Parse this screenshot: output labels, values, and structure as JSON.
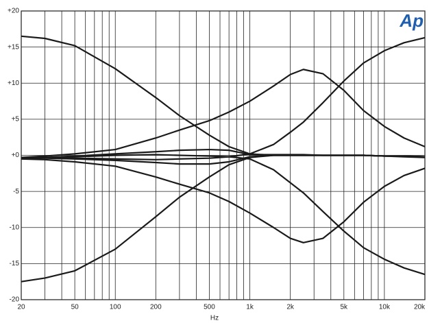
{
  "chart_data": {
    "type": "line",
    "logo": "Ap",
    "xlabel": "Hz",
    "xscale": "log",
    "grid": true,
    "xlim": [
      20,
      20000
    ],
    "ylim": [
      -20,
      20
    ],
    "xticks": [
      20,
      50,
      100,
      200,
      500,
      {
        "value": 1000,
        "label": "1k"
      },
      {
        "value": 2000,
        "label": "2k"
      },
      {
        "value": 5000,
        "label": "5k"
      },
      {
        "value": 10000,
        "label": "10k"
      },
      {
        "value": 20000,
        "label": "20k"
      }
    ],
    "xgrid": [
      30,
      40,
      60,
      70,
      80,
      90,
      300,
      400,
      600,
      700,
      800,
      900,
      3000,
      4000,
      6000,
      7000,
      8000,
      9000
    ],
    "yticks": [
      {
        "value": 20,
        "label": "+20"
      },
      {
        "value": 15,
        "label": "+15"
      },
      {
        "value": 10,
        "label": "+10"
      },
      {
        "value": 5,
        "label": "+5"
      },
      {
        "value": 0,
        "label": "+0"
      },
      -5,
      -10,
      -15,
      -20
    ],
    "x": [
      20,
      30,
      50,
      100,
      200,
      300,
      500,
      700,
      1000,
      1500,
      2000,
      2500,
      3500,
      5000,
      7000,
      10000,
      14000,
      20000
    ],
    "series": [
      {
        "color": "#1a1a1a",
        "values": [
          16.5,
          16.2,
          15.2,
          12,
          8,
          5.5,
          2.8,
          1.2,
          0.2,
          0,
          0,
          0,
          0,
          0,
          0,
          -0.1,
          -0.1,
          -0.2
        ]
      },
      {
        "color": "#1a1a1a",
        "values": [
          -17.5,
          -17,
          -16,
          -13,
          -8.5,
          -5.8,
          -3,
          -1.3,
          -0.3,
          0,
          0,
          0,
          0,
          0,
          0,
          -0.1,
          -0.1,
          -0.2
        ]
      },
      {
        "color": "#1a1a1a",
        "values": [
          -0.3,
          -0.3,
          -0.2,
          0,
          0.1,
          0,
          -0.1,
          -0.2,
          0.2,
          1.5,
          3.2,
          4.6,
          7.3,
          10.3,
          12.8,
          14.5,
          15.6,
          16.3
        ]
      },
      {
        "color": "#1a1a1a",
        "values": [
          -0.3,
          -0.3,
          -0.4,
          -0.5,
          -0.6,
          -0.5,
          -0.4,
          -0.2,
          -0.5,
          -2,
          -3.8,
          -5.2,
          -7.8,
          -10.5,
          -12.8,
          -14.4,
          -15.6,
          -16.5
        ]
      },
      {
        "color": "#1a1a1a",
        "values": [
          -0.3,
          -0.1,
          0.2,
          0.8,
          2.4,
          3.5,
          4.8,
          6,
          7.5,
          9.6,
          11.2,
          11.9,
          11.3,
          9,
          6.2,
          4,
          2.4,
          1.2
        ]
      },
      {
        "color": "#1a1a1a",
        "values": [
          -0.5,
          -0.6,
          -0.9,
          -1.5,
          -3,
          -4,
          -5.2,
          -6.4,
          -8,
          -10,
          -11.5,
          -12.1,
          -11.5,
          -9.2,
          -6.5,
          -4.3,
          -2.8,
          -1.8
        ]
      },
      {
        "color": "#1a1a1a",
        "values": [
          -0.4,
          -0.3,
          -0.1,
          0.2,
          0.5,
          0.7,
          0.8,
          0.7,
          0.1,
          0.1,
          0.1,
          0.1,
          0,
          0,
          0,
          -0.1,
          -0.1,
          -0.2
        ]
      },
      {
        "color": "#1a1a1a",
        "values": [
          -0.4,
          -0.4,
          -0.5,
          -0.7,
          -1,
          -1.2,
          -1.2,
          -0.9,
          -0.2,
          0,
          0,
          0,
          0,
          0,
          0,
          -0.1,
          -0.2,
          -0.3
        ]
      }
    ]
  }
}
